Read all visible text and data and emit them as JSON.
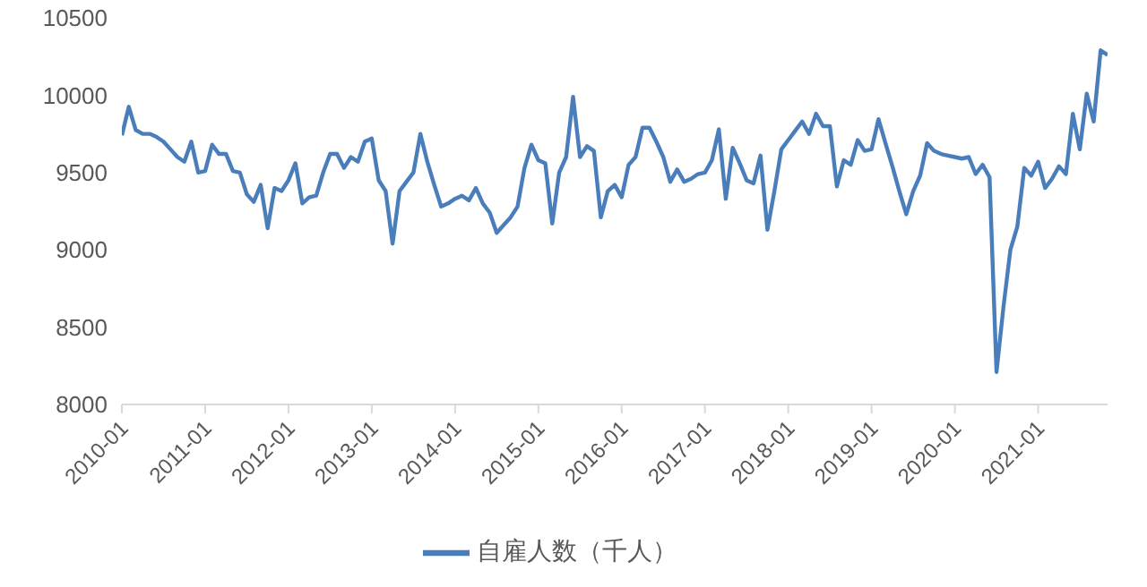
{
  "chart_data": {
    "type": "line",
    "categories": [
      "2010-01",
      null,
      null,
      null,
      null,
      null,
      null,
      null,
      null,
      null,
      null,
      null,
      "2011-01",
      null,
      null,
      null,
      null,
      null,
      null,
      null,
      null,
      null,
      null,
      null,
      "2012-01",
      null,
      null,
      null,
      null,
      null,
      null,
      null,
      null,
      null,
      null,
      null,
      "2013-01",
      null,
      null,
      null,
      null,
      null,
      null,
      null,
      null,
      null,
      null,
      null,
      "2014-01",
      null,
      null,
      null,
      null,
      null,
      null,
      null,
      null,
      null,
      null,
      null,
      "2015-01",
      null,
      null,
      null,
      null,
      null,
      null,
      null,
      null,
      null,
      null,
      null,
      "2016-01",
      null,
      null,
      null,
      null,
      null,
      null,
      null,
      null,
      null,
      null,
      null,
      "2017-01",
      null,
      null,
      null,
      null,
      null,
      null,
      null,
      null,
      null,
      null,
      null,
      "2018-01",
      null,
      null,
      null,
      null,
      null,
      null,
      null,
      null,
      null,
      null,
      null,
      "2019-01",
      null,
      null,
      null,
      null,
      null,
      null,
      null,
      null,
      null,
      null,
      null,
      "2020-01",
      null,
      null,
      null,
      null,
      null,
      null,
      null,
      null,
      null,
      null,
      null,
      "2021-01",
      null,
      null,
      null,
      null,
      null,
      null,
      null,
      null,
      null,
      null
    ],
    "series": [
      {
        "name": "自雇人数（千人）",
        "color": "#4a7ebb",
        "values": [
          9740,
          9925,
          9775,
          9750,
          9750,
          9730,
          9700,
          9650,
          9600,
          9570,
          9700,
          9500,
          9510,
          9680,
          9620,
          9620,
          9510,
          9500,
          9360,
          9310,
          9420,
          9140,
          9400,
          9380,
          9450,
          9560,
          9300,
          9340,
          9350,
          9500,
          9620,
          9620,
          9530,
          9600,
          9570,
          9700,
          9720,
          9450,
          9380,
          9040,
          9380,
          9440,
          9500,
          9750,
          9570,
          9420,
          9280,
          9300,
          9330,
          9350,
          9320,
          9400,
          9300,
          9240,
          9110,
          9160,
          9210,
          9280,
          9530,
          9680,
          9580,
          9560,
          9170,
          9500,
          9600,
          9990,
          9600,
          9670,
          9640,
          9210,
          9380,
          9420,
          9340,
          9550,
          9600,
          9790,
          9790,
          9700,
          9600,
          9440,
          9520,
          9440,
          9460,
          9490,
          9500,
          9580,
          9780,
          9330,
          9660,
          9560,
          9450,
          9430,
          9610,
          9130,
          9380,
          9650,
          9710,
          9770,
          9830,
          9750,
          9880,
          9800,
          9800,
          9410,
          9580,
          9550,
          9710,
          9640,
          9650,
          9845,
          9690,
          9540,
          9380,
          9230,
          9380,
          9480,
          9690,
          9640,
          9620,
          9610,
          9600,
          9590,
          9600,
          9490,
          9550,
          9470,
          8210,
          8630,
          9000,
          9150,
          9530,
          9480,
          9570,
          9400,
          9460,
          9540,
          9490,
          9880,
          9650,
          10010,
          9830,
          10290,
          10260
        ]
      }
    ],
    "ylim": [
      8000,
      10500
    ],
    "yticks": [
      8000,
      8500,
      9000,
      9500,
      10000,
      10500
    ],
    "grid": false,
    "legend": "bottom",
    "marker": "none",
    "line_style": "solid"
  }
}
